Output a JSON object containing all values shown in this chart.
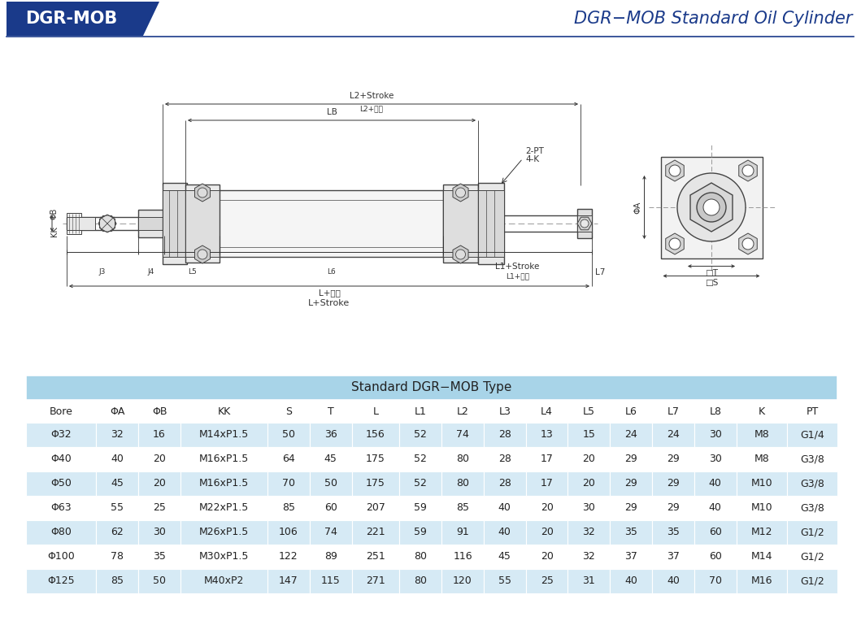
{
  "header_bg_color": "#1a3a8a",
  "header_text": "DGR-MOB",
  "header_text_color": "#ffffff",
  "title_text": "DGR−MOB Standard Oil Cylinder",
  "title_color": "#1a3a8a",
  "line_color": "#1a3a8a",
  "table_header_bg": "#a8d4e8",
  "table_row_bg_alt": "#d6eaf5",
  "table_row_bg_main": "#ffffff",
  "table_text_color": "#333333",
  "table_header_text": "Standard DGR−MOB Type",
  "col_headers": [
    "Bore",
    "ΦA",
    "ΦB",
    "KK",
    "S",
    "T",
    "L",
    "L1",
    "L2",
    "L3",
    "L4",
    "L5",
    "L6",
    "L7",
    "L8",
    "K",
    "PT"
  ],
  "rows": [
    [
      "Φ32",
      "32",
      "16",
      "M14xP1.5",
      "50",
      "36",
      "156",
      "52",
      "74",
      "28",
      "13",
      "15",
      "24",
      "24",
      "30",
      "M8",
      "G1/4"
    ],
    [
      "Φ40",
      "40",
      "20",
      "M16xP1.5",
      "64",
      "45",
      "175",
      "52",
      "80",
      "28",
      "17",
      "20",
      "29",
      "29",
      "30",
      "M8",
      "G3/8"
    ],
    [
      "Φ50",
      "45",
      "20",
      "M16xP1.5",
      "70",
      "50",
      "175",
      "52",
      "80",
      "28",
      "17",
      "20",
      "29",
      "29",
      "40",
      "M10",
      "G3/8"
    ],
    [
      "Φ63",
      "55",
      "25",
      "M22xP1.5",
      "85",
      "60",
      "207",
      "59",
      "85",
      "40",
      "20",
      "30",
      "29",
      "29",
      "40",
      "M10",
      "G3/8"
    ],
    [
      "Φ80",
      "62",
      "30",
      "M26xP1.5",
      "106",
      "74",
      "221",
      "59",
      "91",
      "40",
      "20",
      "32",
      "35",
      "35",
      "60",
      "M12",
      "G1/2"
    ],
    [
      "Φ100",
      "78",
      "35",
      "M30xP1.5",
      "122",
      "89",
      "251",
      "80",
      "116",
      "45",
      "20",
      "32",
      "37",
      "37",
      "60",
      "M14",
      "G1/2"
    ],
    [
      "Φ125",
      "85",
      "50",
      "M40xP2",
      "147",
      "115",
      "271",
      "80",
      "120",
      "55",
      "25",
      "31",
      "40",
      "40",
      "70",
      "M16",
      "G1/2"
    ]
  ],
  "bg_color": "#ffffff"
}
